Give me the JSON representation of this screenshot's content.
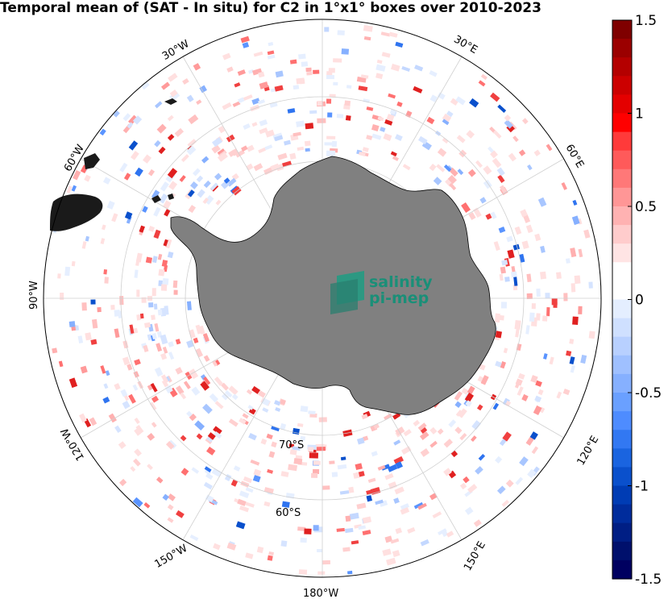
{
  "title": "Temporal mean of (SAT - In situ) for C2 in 1°x1° boxes over 2010-2023",
  "map": {
    "projection": "south-polar-stereographic",
    "longitude_labels": [
      "30°W",
      "30°E",
      "60°W",
      "60°E",
      "90°W",
      "120°W",
      "120°E",
      "150°W",
      "150°E",
      "180°W"
    ],
    "latitude_labels": [
      "70°S",
      "60°S"
    ],
    "land_color": "#7f7f7f",
    "grid_color": "#d4d4d4"
  },
  "colorbar": {
    "range": [
      -1.5,
      1.5
    ],
    "tick_labels": [
      "1.5",
      "1",
      "0.5",
      "0",
      "-0.5",
      "-1",
      "-1.5"
    ],
    "tick_values": [
      1.5,
      1,
      0.5,
      0,
      -0.5,
      -1,
      -1.5
    ],
    "colors_top_to_bottom": [
      "#7f0000",
      "#9b0000",
      "#b40000",
      "#cc0000",
      "#e40000",
      "#ff0000",
      "#ff3a3a",
      "#ff5a5a",
      "#ff7878",
      "#ff9696",
      "#ffb2b2",
      "#ffcccc",
      "#ffe4e4",
      "#ffffff",
      "#ffffff",
      "#e4eeff",
      "#cfe0ff",
      "#b8d0ff",
      "#9fc0ff",
      "#86b0ff",
      "#6aa0ff",
      "#4e8cff",
      "#3278f2",
      "#1a64e0",
      "#0a50cc",
      "#003cb4",
      "#002c9c",
      "#001e84",
      "#00106c",
      "#000060"
    ]
  },
  "logo": {
    "line1": "salinity",
    "line2": "pi-mep"
  }
}
